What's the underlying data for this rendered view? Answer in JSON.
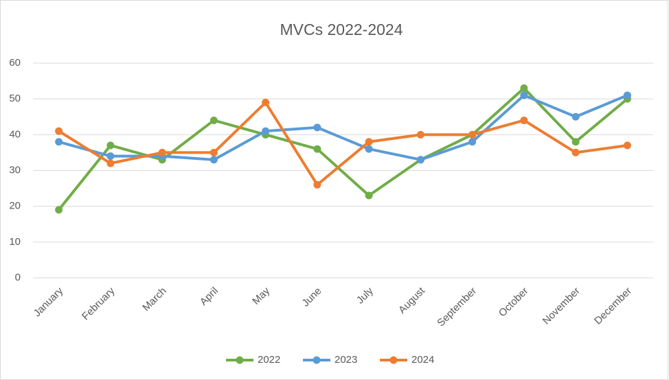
{
  "chart_data": {
    "type": "line",
    "title": "MVCs 2022-2024",
    "categories": [
      "January",
      "February",
      "March",
      "April",
      "May",
      "June",
      "July",
      "August",
      "September",
      "October",
      "November",
      "December"
    ],
    "series": [
      {
        "name": "2022",
        "color": "#70ad47",
        "values": [
          19,
          37,
          33,
          44,
          40,
          36,
          23,
          33,
          40,
          53,
          38,
          50
        ]
      },
      {
        "name": "2023",
        "color": "#5b9bd5",
        "values": [
          38,
          34,
          34,
          33,
          41,
          42,
          36,
          33,
          38,
          51,
          45,
          51
        ]
      },
      {
        "name": "2024",
        "color": "#ed7d31",
        "values": [
          41,
          32,
          35,
          35,
          49,
          26,
          38,
          40,
          40,
          44,
          35,
          37
        ]
      }
    ],
    "ylim": [
      0,
      60
    ],
    "yticks": [
      0,
      10,
      20,
      30,
      40,
      50,
      60
    ],
    "grid": true,
    "legend": "bottom"
  }
}
